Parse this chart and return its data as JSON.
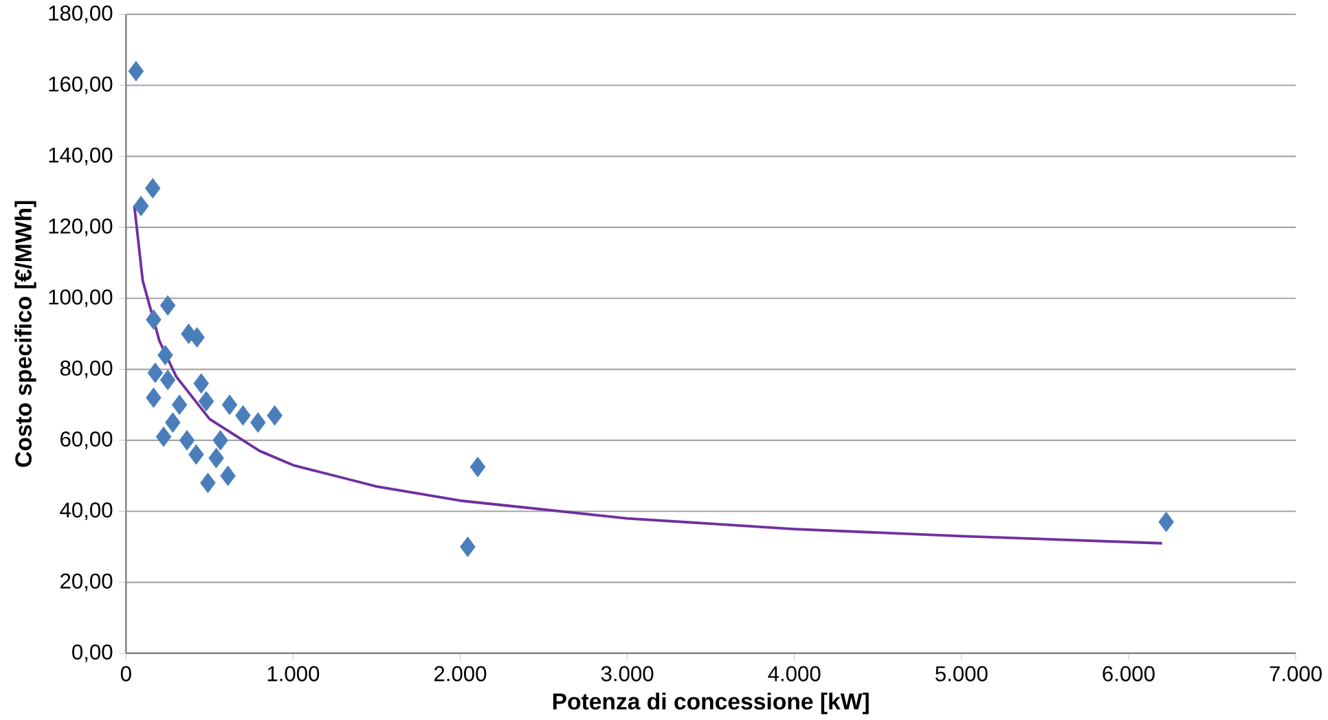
{
  "chart_data": {
    "type": "scatter",
    "xlabel": "Potenza di concessione [kW]",
    "ylabel": "Costo specifico [€/MWh]",
    "xlim": [
      0,
      7000
    ],
    "ylim": [
      0,
      180
    ],
    "grid": "y",
    "xticks": [
      {
        "value": 0,
        "label": "0"
      },
      {
        "value": 1000,
        "label": "1.000"
      },
      {
        "value": 2000,
        "label": "2.000"
      },
      {
        "value": 3000,
        "label": "3.000"
      },
      {
        "value": 4000,
        "label": "4.000"
      },
      {
        "value": 5000,
        "label": "5.000"
      },
      {
        "value": 6000,
        "label": "6.000"
      },
      {
        "value": 7000,
        "label": "7.000"
      }
    ],
    "yticks": [
      {
        "value": 0,
        "label": "0,00"
      },
      {
        "value": 20,
        "label": "20,00"
      },
      {
        "value": 40,
        "label": "40,00"
      },
      {
        "value": 60,
        "label": "60,00"
      },
      {
        "value": 80,
        "label": "80,00"
      },
      {
        "value": 100,
        "label": "100,00"
      },
      {
        "value": 120,
        "label": "120,00"
      },
      {
        "value": 140,
        "label": "140,00"
      },
      {
        "value": 160,
        "label": "160,00"
      },
      {
        "value": 180,
        "label": "180,00"
      }
    ],
    "series": [
      {
        "color": "#4a7ebb",
        "marker": "diamond",
        "x": [
          60,
          90,
          160,
          165,
          250,
          375,
          425,
          235,
          175,
          250,
          165,
          450,
          480,
          320,
          225,
          365,
          620,
          700,
          790,
          890,
          420,
          565,
          490,
          610,
          540,
          280,
          2045,
          2105,
          6225
        ],
        "values": [
          164,
          126,
          131,
          94,
          98,
          90,
          89,
          84,
          79,
          77,
          72,
          76,
          71,
          70,
          61,
          60,
          70,
          67,
          65,
          67,
          56,
          60,
          48,
          50,
          55,
          65,
          30,
          52.5,
          37
        ]
      },
      {
        "type": "line",
        "color": "#7030a0",
        "marker": "none",
        "line_style": "solid",
        "x": [
          50,
          100,
          200,
          300,
          500,
          800,
          1000,
          1500,
          2000,
          3000,
          4000,
          5000,
          6200
        ],
        "values": [
          126,
          105,
          88,
          78,
          66,
          57,
          53,
          47,
          43,
          38,
          35,
          33,
          31
        ]
      }
    ]
  }
}
